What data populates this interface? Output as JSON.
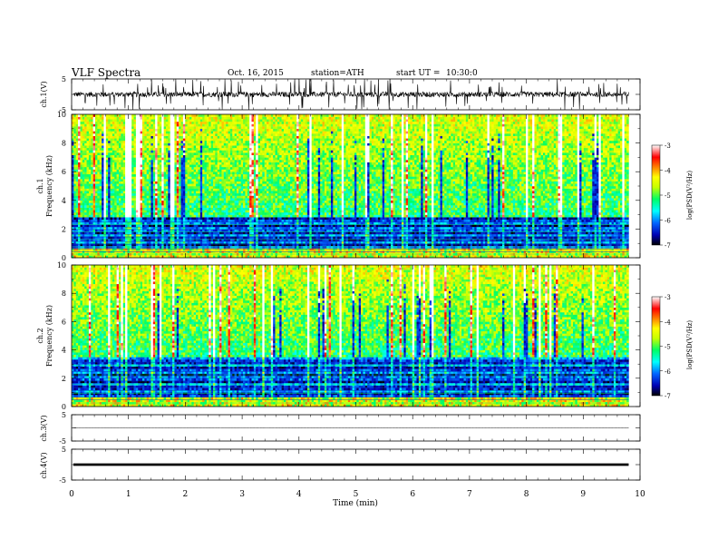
{
  "header": {
    "title": "VLF  Spectra",
    "date": "Oct. 16, 2015",
    "station": "station=ATH",
    "start_label": "start  UT  =",
    "start_time": "10:30:0"
  },
  "colors": {
    "waveform": "#000000",
    "spectrogram_scale": [
      "#000000",
      "#0000b4",
      "#0064ff",
      "#00ffff",
      "#00ff64",
      "#c8ff00",
      "#ffff00",
      "#ff8000",
      "#ff0000",
      "#ffffff"
    ]
  },
  "chart_data": [
    {
      "type": "line",
      "panel": "ch1-waveform",
      "ylabel": "ch.1(V)",
      "ylim": [
        -5,
        5
      ],
      "y_ticks": [
        "5",
        "-5"
      ],
      "xlim": [
        0,
        10
      ],
      "data_extent_min": [
        0,
        9.8
      ],
      "baseline": 0,
      "amplitude_typical": 1.2,
      "description": "noisy VLF waveform with frequent spikes"
    },
    {
      "type": "heatmap",
      "panel": "ch1-spectrogram",
      "ylabel_channel": "ch.1",
      "ylabel": "Frequency  (kHz)",
      "ylim": [
        0,
        10
      ],
      "y_ticks": [
        "0",
        "2",
        "4",
        "6",
        "8",
        "10"
      ],
      "xlim": [
        0,
        10
      ],
      "colorbar": {
        "label": "log(PSD(V²/Hz)",
        "range": [
          -7,
          -3
        ],
        "ticks": [
          "-3",
          "-4",
          "-5",
          "-6",
          "-7"
        ]
      },
      "low_band_boundary_kHz": 2.8
    },
    {
      "type": "heatmap",
      "panel": "ch2-spectrogram",
      "ylabel_channel": "ch.2",
      "ylabel": "Frequency  (kHz)",
      "ylim": [
        0,
        10
      ],
      "y_ticks": [
        "0",
        "2",
        "4",
        "6",
        "8",
        "10"
      ],
      "xlim": [
        0,
        10
      ],
      "colorbar": {
        "label": "log(PSD(V²/Hz)",
        "range": [
          -7,
          -3
        ],
        "ticks": [
          "-3",
          "-4",
          "-5",
          "-6",
          "-7"
        ]
      },
      "low_band_boundary_kHz": 3.5
    },
    {
      "type": "line",
      "panel": "ch3-waveform",
      "ylabel": "ch.3(V)",
      "ylim": [
        -5,
        5
      ],
      "y_ticks": [
        "5",
        "-5"
      ],
      "xlim": [
        0,
        10
      ],
      "baseline": 0,
      "amplitude_typical": 0.1
    },
    {
      "type": "line",
      "panel": "ch4-waveform",
      "ylabel": "ch.4(V)",
      "ylim": [
        -5,
        5
      ],
      "y_ticks": [
        "5",
        "-5"
      ],
      "xlim": [
        0,
        10
      ],
      "baseline": 0,
      "amplitude_typical": 0.4
    }
  ],
  "x_axis": {
    "label": "Time  (min)",
    "ticks": [
      "0",
      "1",
      "2",
      "3",
      "4",
      "5",
      "6",
      "7",
      "8",
      "9",
      "10"
    ]
  }
}
